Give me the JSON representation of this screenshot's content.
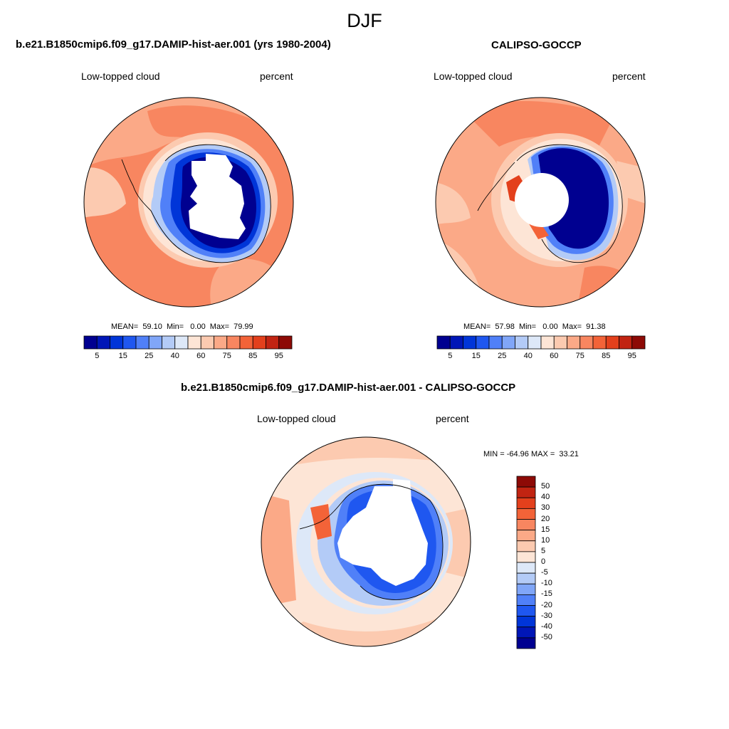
{
  "title": "DJF",
  "colors": {
    "levels_abs": [
      "#000090",
      "#0016b7",
      "#0035d8",
      "#1f57f0",
      "#5080f8",
      "#80a6f8",
      "#b3cbf7",
      "#dde8f8",
      "#fde5d6",
      "#fccab0",
      "#fba987",
      "#f88660",
      "#f36338",
      "#e3401c",
      "#c12412",
      "#8d0a06"
    ],
    "levels_diff": [
      "#000090",
      "#0016b7",
      "#0035d8",
      "#1f57f0",
      "#5080f8",
      "#80a6f8",
      "#b3cbf7",
      "#dde8f8",
      "#fde5d6",
      "#fccab0",
      "#fba987",
      "#f88660",
      "#f36338",
      "#e3401c",
      "#c12412",
      "#8d0a06"
    ]
  },
  "panels": {
    "model": {
      "title": "b.e21.B1850cmip6.f09_g17.DAMIP-hist-aer.001 (yrs 1980-2004)",
      "left_label": "Low-topped cloud",
      "right_label": "percent",
      "stats": "MEAN=  59.10  Min=   0.00  Max=  79.99",
      "colorbar_ticks": [
        "5",
        "15",
        "25",
        "40",
        "60",
        "75",
        "85",
        "95"
      ]
    },
    "obs": {
      "title": "CALIPSO-GOCCP",
      "left_label": "Low-topped cloud",
      "right_label": "percent",
      "stats": "MEAN=  57.98  Min=   0.00  Max=  91.38",
      "colorbar_ticks": [
        "5",
        "15",
        "25",
        "40",
        "60",
        "75",
        "85",
        "95"
      ]
    },
    "diff": {
      "title": "b.e21.B1850cmip6.f09_g17.DAMIP-hist-aer.001 - CALIPSO-GOCCP",
      "left_label": "Low-topped cloud",
      "right_label": "percent",
      "stats": "MIN = -64.96 MAX =  33.21",
      "colorbar_ticks": [
        "50",
        "40",
        "30",
        "20",
        "15",
        "10",
        "5",
        "0",
        "-5",
        "-10",
        "-15",
        "-20",
        "-30",
        "-40",
        "-50"
      ]
    }
  }
}
